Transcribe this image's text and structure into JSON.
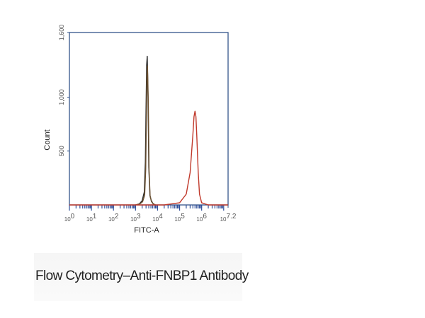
{
  "chart_data": {
    "type": "line",
    "title": "",
    "xlabel": "FITC-A",
    "ylabel": "Count",
    "x_scale": "log",
    "xlim": [
      1,
      15848931.9
    ],
    "ylim": [
      0,
      1600
    ],
    "grid": false,
    "x_ticks": [
      {
        "value": 1,
        "base": "10",
        "exp": "0"
      },
      {
        "value": 10,
        "base": "10",
        "exp": "1"
      },
      {
        "value": 100,
        "base": "10",
        "exp": "2"
      },
      {
        "value": 1000,
        "base": "10",
        "exp": "3"
      },
      {
        "value": 10000,
        "base": "10",
        "exp": "4"
      },
      {
        "value": 100000,
        "base": "10",
        "exp": "5"
      },
      {
        "value": 1000000,
        "base": "10",
        "exp": "6"
      },
      {
        "value": 15848931.9,
        "base": "10",
        "exp": "7.2"
      }
    ],
    "y_ticks": [
      {
        "value": 500,
        "label": "500"
      },
      {
        "value": 1000,
        "label": "1,000"
      },
      {
        "value": 1600,
        "label": "1,600"
      }
    ],
    "series": [
      {
        "color": "#2a2a2a",
        "x": [
          1000,
          1500,
          2000,
          2500,
          2800,
          3000,
          3200,
          3400,
          3700,
          4000,
          4500,
          5200,
          6300,
          8000
        ],
        "y": [
          0,
          10,
          40,
          120,
          400,
          900,
          1300,
          1380,
          1000,
          350,
          90,
          40,
          10,
          0
        ]
      },
      {
        "color": "#6b5030",
        "x": [
          1000,
          1600,
          2100,
          2600,
          2900,
          3100,
          3300,
          3500,
          3800,
          4100,
          4600,
          5300,
          6500,
          8000
        ],
        "y": [
          0,
          10,
          30,
          90,
          330,
          780,
          1200,
          1290,
          950,
          330,
          80,
          30,
          10,
          0
        ]
      },
      {
        "color": "#c0392b",
        "x": [
          1,
          10,
          100,
          1000,
          20000,
          100000,
          200000,
          300000,
          400000,
          450000,
          500000,
          550000,
          600000,
          700000,
          800000,
          1000000,
          2000000,
          15848931.9
        ],
        "y": [
          0,
          0,
          0,
          0,
          0,
          20,
          100,
          300,
          650,
          820,
          870,
          820,
          650,
          300,
          100,
          20,
          0,
          0
        ]
      }
    ]
  },
  "caption": "Flow Cytometry–Anti-FNBP1 Antibody"
}
